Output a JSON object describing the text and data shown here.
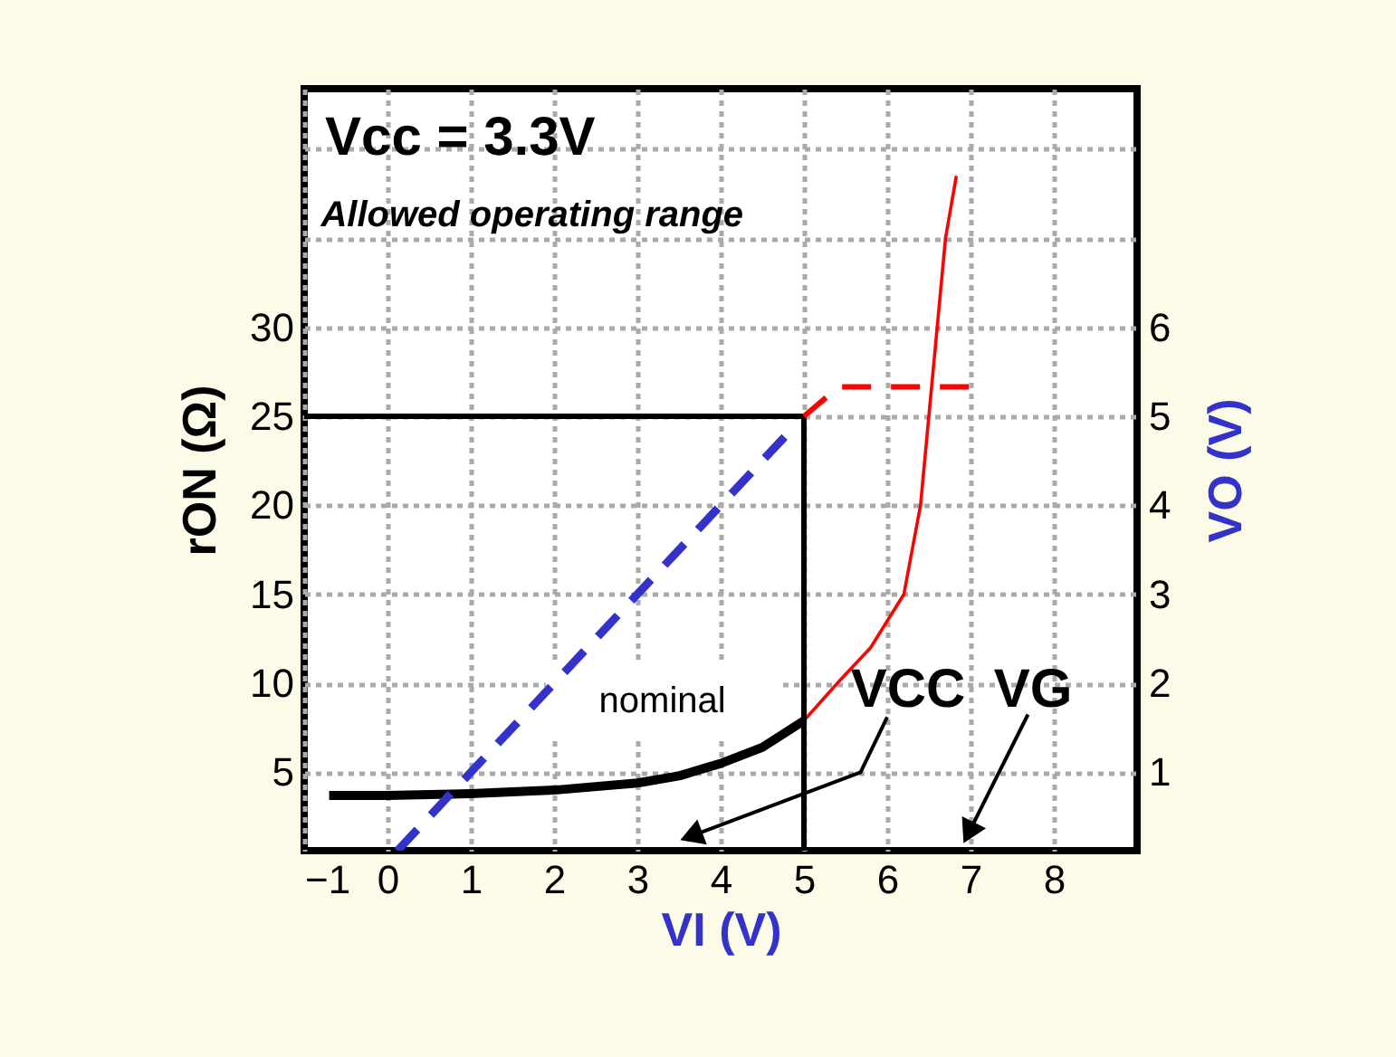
{
  "chart_data": {
    "type": "line",
    "xlabel": "VI (V)",
    "ylabel": "rON (Ω)",
    "y2label": "VO (V)",
    "xlim": [
      -1,
      9
    ],
    "ylim": [
      0.6,
      43.4
    ],
    "y2lim": [
      0.12,
      8.68
    ],
    "xticks": [
      -1,
      0,
      1,
      2,
      3,
      4,
      5,
      6,
      7,
      8
    ],
    "yticks": [
      5,
      10,
      15,
      20,
      25,
      30,
      {
        "value": 35,
        "label": null
      },
      {
        "value": 40,
        "label": null
      }
    ],
    "y2ticks": [
      1,
      2,
      3,
      4,
      5,
      6
    ],
    "grid": true,
    "annotations": [
      "Vcc = 3.3V",
      "Allowed operating range",
      "nominal",
      "VCC",
      "VG"
    ],
    "series": [
      {
        "color": "#000000",
        "line_style": "solid",
        "x": [
          -0.7,
          0,
          1,
          2,
          3,
          3.5,
          4,
          4.5,
          5
        ],
        "values": [
          3.7,
          3.7,
          3.8,
          4.0,
          4.4,
          4.8,
          5.5,
          6.4,
          7.9
        ]
      },
      {
        "color": "#ff0000",
        "line_style": "solid",
        "x": [
          5,
          5.4,
          5.8,
          6.2,
          6.4,
          6.5,
          6.6,
          6.7,
          6.83
        ],
        "values": [
          7.9,
          10,
          12,
          15,
          20,
          25,
          30,
          35,
          38.5
        ]
      },
      {
        "color": "#000000",
        "line_style": "solid",
        "x": [
          -1,
          5,
          5
        ],
        "values": [
          25,
          25,
          0.6
        ]
      },
      {
        "color": "#3333cc",
        "line_style": "dashed",
        "axis": "y2",
        "x": [
          0.12,
          4.8
        ],
        "values": [
          0.12,
          4.8
        ]
      },
      {
        "color": "#ff0000",
        "line_style": "dashed",
        "axis": "y2",
        "x": [
          5,
          5.42,
          7
        ],
        "values": [
          5,
          5.33,
          5.33
        ]
      }
    ]
  }
}
